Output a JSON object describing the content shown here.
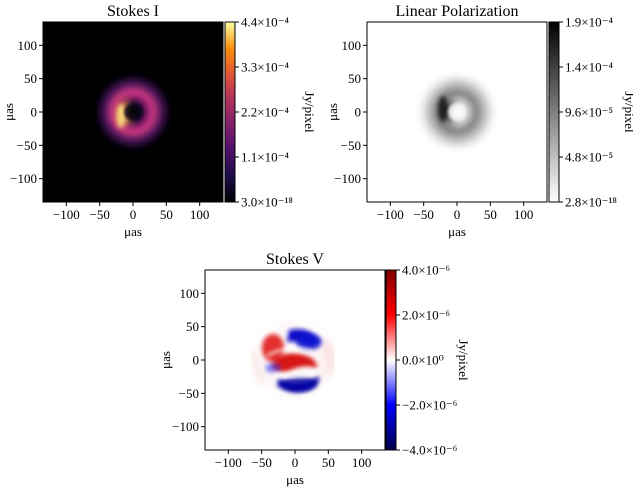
{
  "chart_data": [
    {
      "type": "heatmap",
      "title": "Stokes I",
      "xlabel": "μas",
      "ylabel": "μas",
      "xlim": [
        -135,
        135
      ],
      "ylim": [
        -135,
        135
      ],
      "xticks": [
        "−100",
        "−50",
        "0",
        "50",
        "100"
      ],
      "yticks": [
        "100",
        "50",
        "0",
        "−50",
        "−100"
      ],
      "colormap": "afmhot",
      "colorbar": {
        "label": "Jy/pixel",
        "range": [
          3e-18,
          0.00044
        ],
        "ticks": [
          "4.4×10⁻⁴",
          "3.3×10⁻⁴",
          "2.2×10⁻⁴",
          "1.1×10⁻⁴",
          "3.0×10⁻¹⁸"
        ]
      },
      "image": {
        "structure": "ring",
        "ring_radius_uas": 20,
        "ring_width_uas": 11,
        "brightest_side": "left",
        "peak": 0.00044
      }
    },
    {
      "type": "heatmap",
      "title": "Linear Polarization",
      "xlabel": "μas",
      "ylabel": "μas",
      "xlim": [
        -135,
        135
      ],
      "ylim": [
        -135,
        135
      ],
      "xticks": [
        "−100",
        "−50",
        "0",
        "50",
        "100"
      ],
      "yticks": [
        "100",
        "50",
        "0",
        "−50",
        "−100"
      ],
      "colormap": "gray_r",
      "colorbar": {
        "label": "Jy/pixel",
        "range": [
          2.8e-18,
          0.00019
        ],
        "ticks": [
          "1.9×10⁻⁴",
          "1.4×10⁻⁴",
          "9.6×10⁻⁵",
          "4.8×10⁻⁵",
          "2.8×10⁻¹⁸"
        ]
      },
      "image": {
        "structure": "ring",
        "ring_radius_uas": 20,
        "ring_width_uas": 13,
        "brightest_side": "left",
        "peak": 0.00019
      }
    },
    {
      "type": "heatmap",
      "title": "Stokes V",
      "xlabel": "μas",
      "ylabel": "μas",
      "xlim": [
        -135,
        135
      ],
      "ylim": [
        -135,
        135
      ],
      "xticks": [
        "−100",
        "−50",
        "0",
        "50",
        "100"
      ],
      "yticks": [
        "100",
        "50",
        "0",
        "−50",
        "−100"
      ],
      "colormap": "seismic",
      "colorbar": {
        "label": "Jy/pixel",
        "range": [
          -4e-06,
          4e-06
        ],
        "ticks": [
          "4.0×10⁻⁶",
          "2.0×10⁻⁶",
          "0.0×10⁰",
          "−2.0×10⁻⁶",
          "−4.0×10⁻⁶"
        ]
      },
      "image": {
        "structure": "banded ring",
        "ring_radius_uas": 22,
        "peak_positive": 4e-06,
        "peak_negative": -4e-06
      }
    }
  ]
}
